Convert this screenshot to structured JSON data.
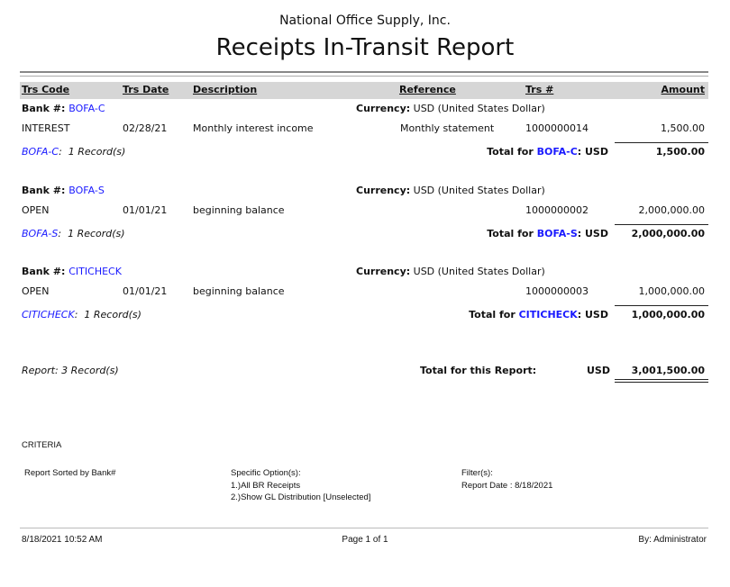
{
  "header": {
    "company": "National Office Supply, Inc.",
    "title": "Receipts In-Transit Report"
  },
  "columns": [
    "Trs Code",
    "Trs Date",
    "Description",
    "Reference",
    "Trs #",
    "Amount"
  ],
  "labels": {
    "bank": "Bank #:",
    "currency": "Currency:",
    "total_for": "Total for",
    "records_suffix": "1 Record(s)"
  },
  "groups": [
    {
      "bank": "BOFA-C",
      "currency": "USD (United States Dollar)",
      "rows": [
        {
          "code": "INTEREST",
          "date": "02/28/21",
          "description": "Monthly interest income",
          "reference": "Monthly statement",
          "trs_no": "1000000014",
          "amount": "1,500.00"
        }
      ],
      "records": "1 Record(s)",
      "currency_code": "USD",
      "total": "1,500.00"
    },
    {
      "bank": "BOFA-S",
      "currency": "USD (United States Dollar)",
      "rows": [
        {
          "code": "OPEN",
          "date": "01/01/21",
          "description": "beginning balance",
          "reference": "",
          "trs_no": "1000000002",
          "amount": "2,000,000.00"
        }
      ],
      "records": "1 Record(s)",
      "currency_code": "USD",
      "total": "2,000,000.00"
    },
    {
      "bank": "CITICHECK",
      "currency": "USD (United States Dollar)",
      "rows": [
        {
          "code": "OPEN",
          "date": "01/01/21",
          "description": "beginning balance",
          "reference": "",
          "trs_no": "1000000003",
          "amount": "1,000,000.00"
        }
      ],
      "records": "1 Record(s)",
      "currency_code": "USD",
      "total": "1,000,000.00"
    }
  ],
  "report_total": {
    "records": "Report: 3 Record(s)",
    "label": "Total for this Report:",
    "currency": "USD",
    "amount": "3,001,500.00"
  },
  "criteria": {
    "title": "CRITERIA",
    "sorted": "Report Sorted by Bank#",
    "options_title": "Specific Option(s):",
    "options": [
      "1.)All BR Receipts",
      "2.)Show GL Distribution [Unselected]"
    ],
    "filters_title": "Filter(s):",
    "filters": [
      "Report Date : 8/18/2021"
    ]
  },
  "footer": {
    "timestamp": "8/18/2021 10:52 AM",
    "page": "Page 1 of 1",
    "by": "By: Administrator"
  },
  "colors": {
    "link": "#1a1aff",
    "header_bar": "#d6d6d6"
  }
}
